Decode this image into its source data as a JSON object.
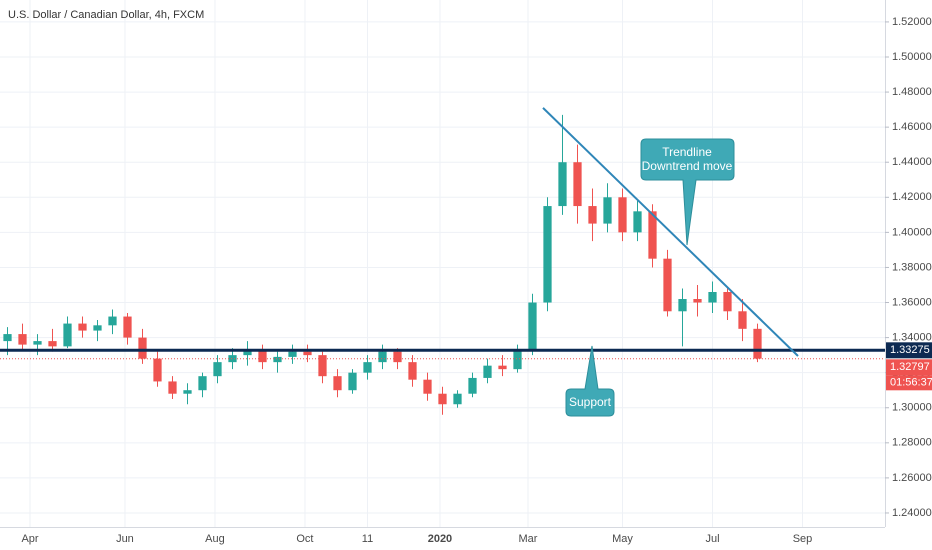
{
  "chart_data": {
    "type": "candlestick",
    "title": "U.S. Dollar / Canadian Dollar, 4h, FXCM",
    "up_color": "#26a69a",
    "down_color": "#ef5350",
    "open": [
      1.338,
      1.342,
      1.336,
      1.338,
      1.335,
      1.348,
      1.344,
      1.347,
      1.352,
      1.34,
      1.328,
      1.315,
      1.308,
      1.31,
      1.318,
      1.326,
      1.33,
      1.333,
      1.326,
      1.329,
      1.332,
      1.33,
      1.318,
      1.31,
      1.32,
      1.326,
      1.332,
      1.326,
      1.316,
      1.308,
      1.302,
      1.308,
      1.317,
      1.324,
      1.322,
      1.333,
      1.36,
      1.415,
      1.44,
      1.415,
      1.405,
      1.42,
      1.4,
      1.412,
      1.385,
      1.355,
      1.362,
      1.36,
      1.366,
      1.355,
      1.345
    ],
    "high": [
      1.346,
      1.348,
      1.342,
      1.345,
      1.352,
      1.352,
      1.35,
      1.356,
      1.354,
      1.345,
      1.332,
      1.318,
      1.314,
      1.32,
      1.33,
      1.334,
      1.338,
      1.336,
      1.332,
      1.336,
      1.336,
      1.332,
      1.322,
      1.322,
      1.33,
      1.336,
      1.334,
      1.33,
      1.32,
      1.312,
      1.31,
      1.32,
      1.328,
      1.33,
      1.336,
      1.365,
      1.42,
      1.467,
      1.45,
      1.425,
      1.428,
      1.425,
      1.418,
      1.416,
      1.39,
      1.368,
      1.37,
      1.372,
      1.368,
      1.362,
      1.348
    ],
    "low": [
      1.33,
      1.333,
      1.33,
      1.332,
      1.334,
      1.34,
      1.338,
      1.342,
      1.336,
      1.325,
      1.312,
      1.305,
      1.302,
      1.306,
      1.314,
      1.322,
      1.324,
      1.322,
      1.32,
      1.325,
      1.326,
      1.314,
      1.306,
      1.308,
      1.316,
      1.322,
      1.322,
      1.312,
      1.304,
      1.296,
      1.3,
      1.306,
      1.314,
      1.318,
      1.32,
      1.33,
      1.355,
      1.41,
      1.405,
      1.395,
      1.4,
      1.395,
      1.395,
      1.38,
      1.352,
      1.335,
      1.352,
      1.354,
      1.35,
      1.338,
      1.326
    ],
    "close": [
      1.342,
      1.336,
      1.338,
      1.335,
      1.348,
      1.344,
      1.347,
      1.352,
      1.34,
      1.328,
      1.315,
      1.308,
      1.31,
      1.318,
      1.326,
      1.33,
      1.333,
      1.326,
      1.329,
      1.332,
      1.33,
      1.318,
      1.31,
      1.32,
      1.326,
      1.332,
      1.326,
      1.316,
      1.308,
      1.302,
      1.308,
      1.317,
      1.324,
      1.322,
      1.333,
      1.36,
      1.415,
      1.44,
      1.415,
      1.405,
      1.42,
      1.4,
      1.412,
      1.385,
      1.355,
      1.362,
      1.36,
      1.366,
      1.355,
      1.345,
      1.328
    ],
    "xlim": [
      0,
      59
    ],
    "xticks": [
      {
        "value": 2,
        "label": "Apr"
      },
      {
        "value": 8.33,
        "label": "Jun"
      },
      {
        "value": 14.33,
        "label": "Aug"
      },
      {
        "value": 20.33,
        "label": "Oct"
      },
      {
        "value": 24.5,
        "label": "11"
      },
      {
        "value": 29.33,
        "label": "2020"
      },
      {
        "value": 35.2,
        "label": "Mar"
      },
      {
        "value": 41.5,
        "label": "May"
      },
      {
        "value": 47.5,
        "label": "Jul"
      },
      {
        "value": 53.5,
        "label": "Sep"
      }
    ],
    "ylim": [
      1.232,
      1.5325
    ],
    "yticks": [
      {
        "value": 1.24,
        "label": "1.24000"
      },
      {
        "value": 1.26,
        "label": "1.26000"
      },
      {
        "value": 1.28,
        "label": "1.28000"
      },
      {
        "value": 1.3,
        "label": "1.30000"
      },
      {
        "value": 1.32,
        "label": "1.32000"
      },
      {
        "value": 1.34,
        "label": "1.34000"
      },
      {
        "value": 1.36,
        "label": "1.36000"
      },
      {
        "value": 1.38,
        "label": "1.38000"
      },
      {
        "value": 1.4,
        "label": "1.40000"
      },
      {
        "value": 1.42,
        "label": "1.42000"
      },
      {
        "value": 1.44,
        "label": "1.44000"
      },
      {
        "value": 1.46,
        "label": "1.46000"
      },
      {
        "value": 1.48,
        "label": "1.48000"
      },
      {
        "value": 1.5,
        "label": "1.50000"
      },
      {
        "value": 1.52,
        "label": "1.52000"
      }
    ],
    "grid": true,
    "support_level": 1.33275,
    "support_color": "#0d2a52",
    "current_price": 1.32797,
    "countdown": "01:56:37",
    "trendline": {
      "x": [
        36.2,
        53.2
      ],
      "y": [
        1.471,
        1.3295
      ],
      "color": "#2f86b8"
    },
    "annotations": {
      "trendline": [
        "Trendline",
        "Downtrend move"
      ],
      "support": "Support"
    }
  }
}
